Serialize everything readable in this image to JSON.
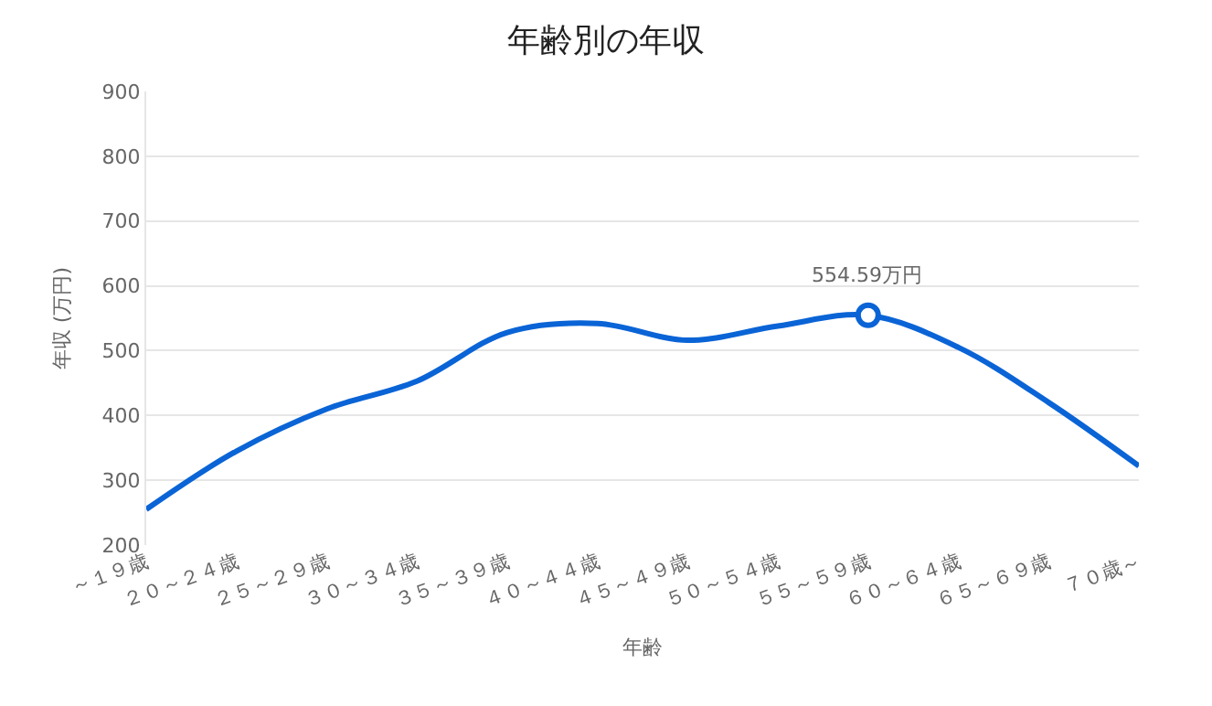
{
  "chart_data": {
    "type": "line",
    "title": "年齢別の年収",
    "xlabel": "年齢",
    "ylabel": "年収 (万円)",
    "categories": [
      "～１９歳",
      "２０～２４歳",
      "２５～２９歳",
      "３０～３４歳",
      "３５～３９歳",
      "４０～４４歳",
      "４５～４９歳",
      "５０～５４歳",
      "５５～５９歳",
      "６０～６４歳",
      "６５～６９歳",
      "７０歳～"
    ],
    "series": [
      {
        "color": "#0a64d6",
        "values": [
          255,
          345,
          410,
          453,
          528,
          542,
          516,
          538,
          554.59,
          505,
          420,
          322
        ]
      }
    ],
    "ylim": [
      200,
      900
    ],
    "yticks": [
      200,
      300,
      400,
      500,
      600,
      700,
      800,
      900
    ],
    "grid": "y",
    "marker": "none",
    "line_style": "solid",
    "annotations": [
      {
        "text": "554.59万円",
        "x": "５５～５９歳",
        "y": 554.59
      }
    ]
  }
}
